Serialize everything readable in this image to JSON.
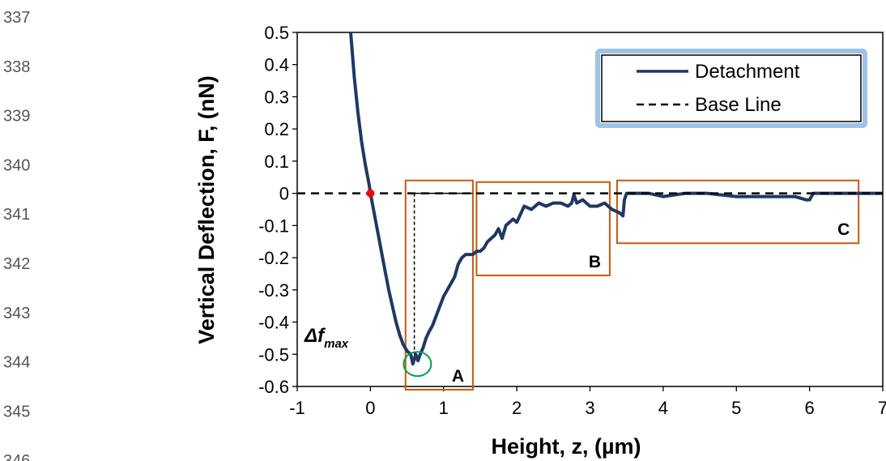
{
  "line_numbers": [
    "337",
    "338",
    "339",
    "340",
    "341",
    "342",
    "343",
    "344",
    "345",
    "346"
  ],
  "chart_data": {
    "type": "line",
    "title": "",
    "xlabel": "Height, z, (µm)",
    "ylabel": "Vertical Deflection, F, (nN)",
    "xlim": [
      -1,
      7
    ],
    "ylim": [
      -0.6,
      0.5
    ],
    "x_ticks": [
      "-1",
      "0",
      "1",
      "2",
      "3",
      "4",
      "5",
      "6",
      "7"
    ],
    "y_ticks": [
      "0.5",
      "0.4",
      "0.3",
      "0.2",
      "0.1",
      "0",
      "-0.1",
      "-0.2",
      "-0.3",
      "-0.4",
      "-0.5",
      "-0.6"
    ],
    "legend_position": "top-right",
    "series": [
      {
        "name": "Detachment",
        "style": "solid",
        "color": "#1f3864",
        "x": [
          -0.27,
          -0.22,
          -0.17,
          -0.12,
          -0.07,
          -0.02,
          0.0,
          0.05,
          0.1,
          0.15,
          0.2,
          0.25,
          0.3,
          0.35,
          0.4,
          0.45,
          0.5,
          0.55,
          0.58,
          0.62,
          0.65,
          0.68,
          0.72,
          0.76,
          0.8,
          0.85,
          0.9,
          0.95,
          1.0,
          1.05,
          1.1,
          1.15,
          1.2,
          1.25,
          1.3,
          1.35,
          1.4,
          1.45,
          1.5,
          1.55,
          1.6,
          1.65,
          1.7,
          1.75,
          1.8,
          1.85,
          1.9,
          1.95,
          2.0,
          2.1,
          2.2,
          2.3,
          2.4,
          2.5,
          2.6,
          2.7,
          2.75,
          2.78,
          2.82,
          2.9,
          3.0,
          3.1,
          3.2,
          3.3,
          3.4,
          3.45,
          3.47,
          3.5,
          3.6,
          3.8,
          4.0,
          4.3,
          4.6,
          5.0,
          5.4,
          5.8,
          5.95,
          6.0,
          6.05,
          6.2,
          6.5,
          6.8,
          7.0
        ],
        "y": [
          0.5,
          0.36,
          0.25,
          0.16,
          0.09,
          0.03,
          0.0,
          -0.06,
          -0.12,
          -0.18,
          -0.24,
          -0.3,
          -0.35,
          -0.4,
          -0.44,
          -0.47,
          -0.49,
          -0.5,
          -0.53,
          -0.5,
          -0.52,
          -0.5,
          -0.48,
          -0.45,
          -0.43,
          -0.41,
          -0.38,
          -0.35,
          -0.32,
          -0.3,
          -0.28,
          -0.26,
          -0.22,
          -0.2,
          -0.19,
          -0.19,
          -0.19,
          -0.18,
          -0.18,
          -0.17,
          -0.15,
          -0.14,
          -0.13,
          -0.11,
          -0.14,
          -0.1,
          -0.09,
          -0.08,
          -0.09,
          -0.04,
          -0.05,
          -0.03,
          -0.04,
          -0.03,
          -0.03,
          -0.04,
          -0.03,
          -0.005,
          -0.03,
          -0.02,
          -0.04,
          -0.04,
          -0.03,
          -0.05,
          -0.06,
          -0.07,
          -0.02,
          0.0,
          0.0,
          0.0,
          -0.01,
          0.0,
          0.0,
          -0.01,
          -0.01,
          -0.01,
          -0.02,
          -0.02,
          0.0,
          0.0,
          0.0,
          0.0,
          0.0
        ]
      },
      {
        "name": "Base Line",
        "style": "dashed",
        "color": "#000000",
        "x": [
          -1,
          7
        ],
        "y": [
          0,
          0
        ]
      }
    ],
    "marker_point": {
      "x": 0,
      "y": 0,
      "color": "#ff0000"
    },
    "min_point": {
      "x": 0.62,
      "y": -0.52,
      "color": "#00a050"
    },
    "dfmax_line": {
      "x": 0.6,
      "y_top": 0,
      "y_bottom": -0.5
    },
    "region_boxes": [
      {
        "label": "A",
        "x0": 0.48,
        "x1": 1.4,
        "y0": -0.61,
        "y1": 0.04
      },
      {
        "label": "B",
        "x0": 1.45,
        "x1": 3.27,
        "y0": -0.255,
        "y1": 0.035
      },
      {
        "label": "C",
        "x0": 3.37,
        "x1": 6.67,
        "y0": -0.155,
        "y1": 0.04
      }
    ],
    "annotation": {
      "main": "Δf",
      "sub": "max"
    },
    "box_color": "#c55a11"
  }
}
